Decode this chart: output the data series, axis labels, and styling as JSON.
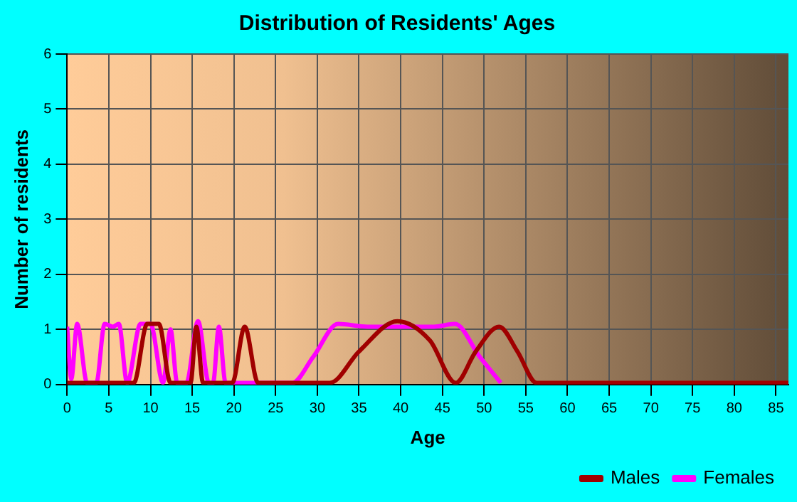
{
  "chart_data": {
    "type": "line",
    "title": "Distribution of Residents' Ages",
    "xlabel": "Age",
    "ylabel": "Number of residents",
    "xlim": [
      0,
      86.5
    ],
    "xticks": [
      0,
      5,
      10,
      15,
      20,
      25,
      30,
      35,
      40,
      45,
      50,
      55,
      60,
      65,
      70,
      75,
      80,
      85
    ],
    "ylim": [
      0,
      6
    ],
    "yticks": [
      0,
      1,
      2,
      3,
      4,
      5,
      6
    ],
    "grid": true,
    "legend": "bottom right",
    "marker": "none",
    "line_style": "solid",
    "series": [
      {
        "name": "Males",
        "color": "#a00000",
        "x": [
          0,
          8,
          9.6,
          11,
          12.4,
          14.8,
          15.5,
          16.3,
          19.8,
          21.3,
          22.9,
          31.5,
          35,
          39.6,
          43.5,
          46.6,
          49,
          51.8,
          54,
          56.3,
          60,
          70,
          86.5
        ],
        "values": [
          0.03,
          0.03,
          1.1,
          1.1,
          0.03,
          0.03,
          1.05,
          0.03,
          0.03,
          1.05,
          0.03,
          0.03,
          0.6,
          1.15,
          0.8,
          0.03,
          0.6,
          1.05,
          0.6,
          0.03,
          0.03,
          0.03,
          0.03
        ]
      },
      {
        "name": "Females",
        "color": "#ff00ff",
        "x": [
          0,
          0.5,
          1.2,
          2.4,
          3.5,
          4.5,
          5.5,
          6.2,
          7.2,
          8.8,
          10,
          11.5,
          12.4,
          13.2,
          14.3,
          15.7,
          17,
          17.5,
          18.2,
          19,
          27,
          29.5,
          32.5,
          36,
          40,
          44,
          46.5,
          49.5,
          52
        ],
        "values": [
          1.05,
          0.1,
          1.1,
          0.03,
          0.03,
          1.1,
          1.05,
          1.1,
          0.03,
          1.1,
          1.1,
          0.03,
          1.0,
          0.03,
          0.03,
          1.15,
          0.03,
          0.03,
          1.05,
          0.03,
          0.03,
          0.5,
          1.1,
          1.05,
          1.05,
          1.05,
          1.1,
          0.5,
          0.03
        ]
      }
    ]
  }
}
